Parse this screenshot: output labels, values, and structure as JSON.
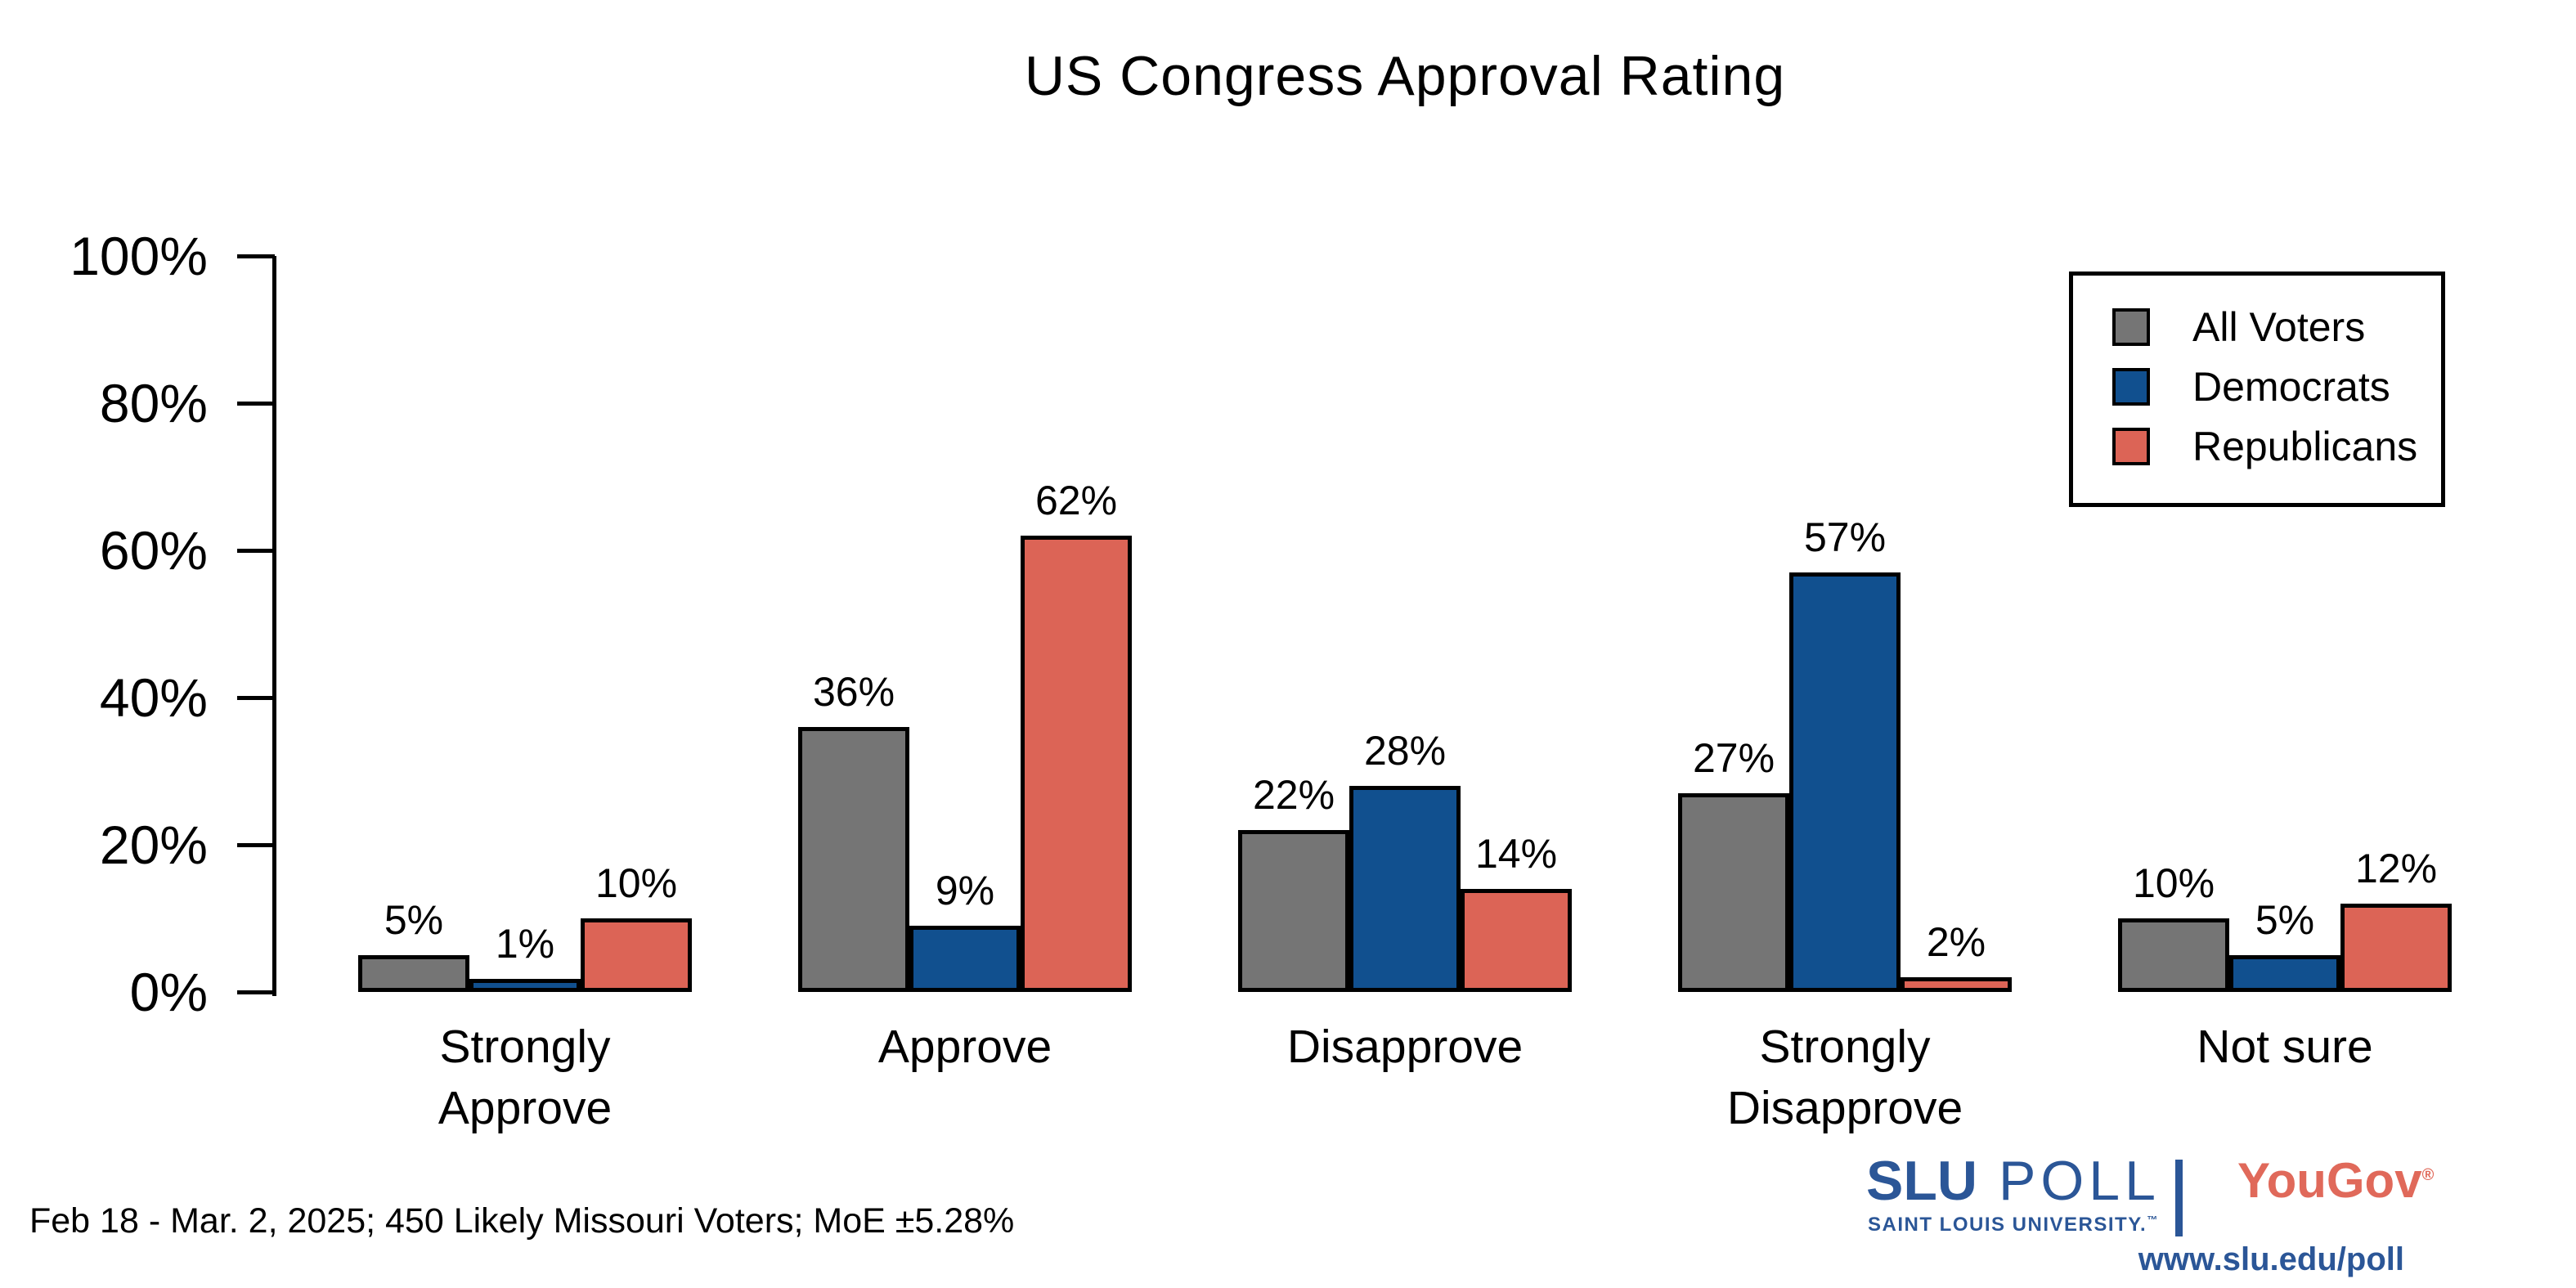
{
  "chart_data": {
    "type": "bar",
    "title": "US Congress Approval Rating",
    "categories": [
      "Strongly\nApprove",
      "Approve",
      "Disapprove",
      "Strongly\nDisapprove",
      "Not sure"
    ],
    "series": [
      {
        "name": "All Voters",
        "color": "#757575",
        "values": [
          5,
          36,
          22,
          27,
          10
        ],
        "labels": [
          "5%",
          "36%",
          "22%",
          "27%",
          "10%"
        ]
      },
      {
        "name": "Democrats",
        "color": "#11508f",
        "values": [
          1,
          9,
          28,
          57,
          5
        ],
        "labels": [
          "1%",
          "9%",
          "28%",
          "57%",
          "5%"
        ]
      },
      {
        "name": "Republicans",
        "color": "#dc6456",
        "values": [
          10,
          62,
          14,
          2,
          12
        ],
        "labels": [
          "10%",
          "62%",
          "14%",
          "2%",
          "12%"
        ]
      }
    ],
    "xlabel": "",
    "ylabel": "",
    "ylim": [
      0,
      100
    ],
    "yticks": [
      "0%",
      "20%",
      "40%",
      "60%",
      "80%",
      "100%"
    ],
    "grid": false,
    "legend_position": "upper right",
    "bar_edge_color": "#000000"
  },
  "footer": {
    "note": "Feb 18 - Mar. 2, 2025; 450 Likely Missouri Voters; MoE ±5.28%"
  },
  "branding": {
    "slu": "SLU",
    "poll": "POLL",
    "university": "SAINT LOUIS UNIVERSITY.",
    "trademark": "™",
    "yougov": "YouGov",
    "registered": "®",
    "url": "www.slu.edu/poll",
    "colors": {
      "slu_blue": "#2b5697",
      "yougov_red": "#e0695a"
    }
  }
}
